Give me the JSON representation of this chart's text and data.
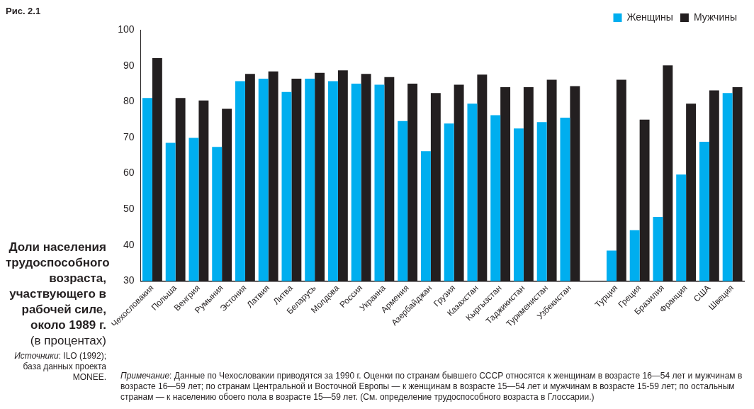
{
  "chart_data": {
    "type": "bar",
    "title": "Доли населения трудоспособного возраста, участвующего в рабочей силе, около 1989 г.",
    "subtitle": "(в процентах)",
    "annotations": [
      "Рис. 2.1",
      "Источники: ILO (1992); база данных проекта MONEE.",
      "Примечание: Данные по Чехословакии приводятся за 1990 г. Оценки по странам бывшего СССР относятся к женщинам в возрасте 16—54 лет и мужчинам в возрасте 16—59 лет; по странам Центральной и Восточной Европы — к женщинам в возрасте 15—54 лет и мужчинам в возрасте 15-59 лет; по остальным странам — к населению обоего пола в возрасте 15—59 лет. (См. определение трудоспособного возраста в Глоссарии.)"
    ],
    "categories": [
      "Чехословакия",
      "Польша",
      "Венгрия",
      "Румыния",
      "Эстония",
      "Латвия",
      "Литва",
      "Беларусь",
      "Молдова",
      "Россия",
      "Украина",
      "Армения",
      "Азербайджан",
      "Грузия",
      "Казахстан",
      "Кыргызстан",
      "Таджикистан",
      "Туркменистан",
      "Узбекистан",
      null,
      "Турция",
      "Греция",
      "Бразилия",
      "Франция",
      "США",
      "Швеция"
    ],
    "series": [
      {
        "name": "Женщины",
        "color": "#00aeef",
        "values": [
          81.0,
          68.5,
          69.9,
          67.4,
          85.7,
          86.4,
          82.7,
          86.4,
          85.7,
          85.0,
          84.7,
          74.6,
          66.2,
          73.9,
          79.4,
          76.2,
          72.5,
          74.3,
          75.5,
          null,
          38.5,
          44.2,
          47.9,
          59.7,
          68.8,
          82.4
        ]
      },
      {
        "name": "Мужчины",
        "color": "#231f20",
        "values": [
          92.1,
          81.0,
          80.3,
          78.0,
          87.7,
          88.4,
          86.4,
          88.0,
          88.7,
          87.7,
          86.8,
          85.0,
          82.4,
          84.7,
          87.5,
          84.0,
          84.0,
          86.1,
          84.3,
          null,
          86.1,
          75.0,
          90.1,
          79.4,
          83.1,
          84.0
        ]
      }
    ],
    "ylim": [
      30,
      100
    ],
    "yticks": [
      30,
      40,
      50,
      60,
      70,
      80,
      90,
      100
    ],
    "grid": false,
    "legend": "top right"
  }
}
